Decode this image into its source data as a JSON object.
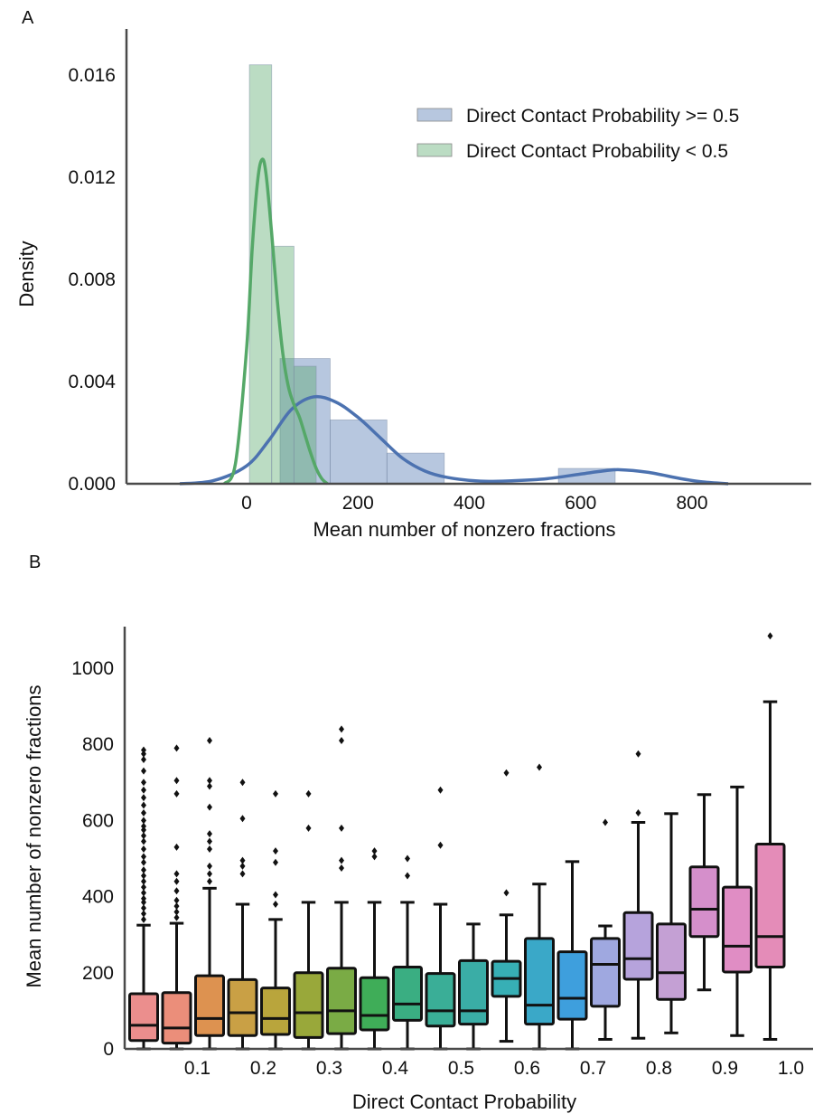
{
  "chart_data": [
    {
      "panel_label": "A",
      "type": "histogram+kde",
      "xlabel": "Mean number of nonzero fractions",
      "ylabel": "Density",
      "xlim": [
        -150,
        950
      ],
      "ylim": [
        0,
        0.018
      ],
      "xticks": [
        0,
        200,
        400,
        600,
        800
      ],
      "yticks": [
        0.0,
        0.004,
        0.008,
        0.012,
        0.016
      ],
      "ytick_labels": [
        "0.000",
        "0.004",
        "0.008",
        "0.012",
        "0.016"
      ],
      "legend_position": "top-right",
      "series": [
        {
          "name": "Direct Contact Probability >= 0.5",
          "color": "#4C72B0",
          "hist": [
            {
              "x0": 60,
              "x1": 150,
              "density": 0.0049
            },
            {
              "x0": 150,
              "x1": 252,
              "density": 0.0025
            },
            {
              "x0": 252,
              "x1": 355,
              "density": 0.0012
            },
            {
              "x0": 355,
              "x1": 560,
              "density": 0.0
            },
            {
              "x0": 560,
              "x1": 662,
              "density": 0.0006
            }
          ],
          "kde": [
            [
              -120,
              0.0
            ],
            [
              -60,
              0.00012
            ],
            [
              0,
              0.0007
            ],
            [
              40,
              0.0017
            ],
            [
              80,
              0.0029
            ],
            [
              120,
              0.0034
            ],
            [
              160,
              0.0032
            ],
            [
              200,
              0.0026
            ],
            [
              240,
              0.0018
            ],
            [
              280,
              0.001
            ],
            [
              320,
              0.0005
            ],
            [
              360,
              0.00025
            ],
            [
              420,
              0.0001
            ],
            [
              480,
              0.00012
            ],
            [
              540,
              0.0002
            ],
            [
              600,
              0.00038
            ],
            [
              640,
              0.0005
            ],
            [
              670,
              0.00055
            ],
            [
              720,
              0.00045
            ],
            [
              780,
              0.0002
            ],
            [
              820,
              7e-05
            ],
            [
              865,
              0.0
            ]
          ]
        },
        {
          "name": "Direct Contact Probability < 0.5",
          "color": "#55A868",
          "hist": [
            {
              "x0": 5,
              "x1": 45,
              "density": 0.0164
            },
            {
              "x0": 45,
              "x1": 85,
              "density": 0.0093
            },
            {
              "x0": 85,
              "x1": 125,
              "density": 0.0046
            }
          ],
          "kde": [
            [
              -40,
              0.0
            ],
            [
              -20,
              0.0008
            ],
            [
              0,
              0.0053
            ],
            [
              10,
              0.0092
            ],
            [
              20,
              0.0119
            ],
            [
              28,
              0.0127
            ],
            [
              35,
              0.0121
            ],
            [
              45,
              0.0098
            ],
            [
              55,
              0.0072
            ],
            [
              65,
              0.0051
            ],
            [
              75,
              0.0038
            ],
            [
              85,
              0.0031
            ],
            [
              95,
              0.0026
            ],
            [
              105,
              0.0019
            ],
            [
              115,
              0.0012
            ],
            [
              125,
              0.0006
            ],
            [
              135,
              0.0002
            ],
            [
              145,
              0.0
            ]
          ]
        }
      ]
    },
    {
      "panel_label": "B",
      "type": "box",
      "xlabel": "Direct Contact Probability",
      "ylabel": "Mean number of nonzero fractions",
      "ylim": [
        0,
        1100
      ],
      "yticks": [
        0,
        200,
        400,
        600,
        800,
        1000
      ],
      "tick_labels": [
        "0.1",
        "0.2",
        "0.3",
        "0.4",
        "0.5",
        "0.6",
        "0.7",
        "0.8",
        "0.9",
        "1.0"
      ],
      "boxes": [
        {
          "color": "#EB8E8D",
          "q1": 22,
          "median": 62,
          "q3": 145,
          "whislo": 0,
          "whishi": 325,
          "fliers": [
            340,
            355,
            370,
            385,
            395,
            410,
            425,
            440,
            455,
            470,
            490,
            505,
            525,
            545,
            560,
            575,
            585,
            600,
            620,
            640,
            660,
            680,
            700,
            730,
            760,
            775,
            785
          ]
        },
        {
          "color": "#EB8E7A",
          "q1": 15,
          "median": 55,
          "q3": 148,
          "whislo": 0,
          "whishi": 330,
          "fliers": [
            345,
            360,
            375,
            390,
            415,
            440,
            460,
            530,
            670,
            705,
            790
          ]
        },
        {
          "color": "#DD9250",
          "q1": 35,
          "median": 80,
          "q3": 192,
          "whislo": 0,
          "whishi": 422,
          "fliers": [
            440,
            460,
            480,
            525,
            545,
            565,
            635,
            690,
            705,
            810
          ]
        },
        {
          "color": "#C9A045",
          "q1": 35,
          "median": 95,
          "q3": 182,
          "whislo": 0,
          "whishi": 380,
          "fliers": [
            460,
            480,
            495,
            605,
            700
          ]
        },
        {
          "color": "#B9A53C",
          "q1": 38,
          "median": 80,
          "q3": 160,
          "whislo": 0,
          "whishi": 340,
          "fliers": [
            380,
            405,
            490,
            520,
            670
          ]
        },
        {
          "color": "#99A83A",
          "q1": 30,
          "median": 95,
          "q3": 200,
          "whislo": 0,
          "whishi": 385,
          "fliers": [
            580,
            670
          ]
        },
        {
          "color": "#7AAB45",
          "q1": 40,
          "median": 100,
          "q3": 212,
          "whislo": 0,
          "whishi": 385,
          "fliers": [
            475,
            495,
            580,
            810,
            840
          ]
        },
        {
          "color": "#3FAD58",
          "q1": 50,
          "median": 88,
          "q3": 187,
          "whislo": 0,
          "whishi": 385,
          "fliers": [
            505,
            520
          ]
        },
        {
          "color": "#3AAE82",
          "q1": 75,
          "median": 118,
          "q3": 215,
          "whislo": 0,
          "whishi": 385,
          "fliers": [
            455,
            500
          ]
        },
        {
          "color": "#3AAE97",
          "q1": 60,
          "median": 100,
          "q3": 198,
          "whislo": 0,
          "whishi": 380,
          "fliers": [
            535,
            680
          ]
        },
        {
          "color": "#3AADA6",
          "q1": 65,
          "median": 100,
          "q3": 232,
          "whislo": 0,
          "whishi": 328,
          "fliers": []
        },
        {
          "color": "#37AFB5",
          "q1": 138,
          "median": 185,
          "q3": 230,
          "whislo": 20,
          "whishi": 352,
          "fliers": [
            410,
            725
          ]
        },
        {
          "color": "#3AA8C8",
          "q1": 65,
          "median": 115,
          "q3": 290,
          "whislo": 0,
          "whishi": 433,
          "fliers": [
            740
          ]
        },
        {
          "color": "#3E9FDD",
          "q1": 78,
          "median": 133,
          "q3": 255,
          "whislo": 0,
          "whishi": 492,
          "fliers": []
        },
        {
          "color": "#9FA8E0",
          "q1": 112,
          "median": 222,
          "q3": 290,
          "whislo": 25,
          "whishi": 323,
          "fliers": [
            595
          ]
        },
        {
          "color": "#B6A3DC",
          "q1": 183,
          "median": 237,
          "q3": 358,
          "whislo": 28,
          "whishi": 595,
          "fliers": [
            620,
            775
          ]
        },
        {
          "color": "#C4A0D4",
          "q1": 130,
          "median": 200,
          "q3": 328,
          "whislo": 42,
          "whishi": 618,
          "fliers": []
        },
        {
          "color": "#D58FCB",
          "q1": 295,
          "median": 367,
          "q3": 478,
          "whislo": 155,
          "whishi": 668,
          "fliers": []
        },
        {
          "color": "#E08DC4",
          "q1": 202,
          "median": 270,
          "q3": 425,
          "whislo": 35,
          "whishi": 688,
          "fliers": []
        },
        {
          "color": "#E48CB8",
          "q1": 215,
          "median": 295,
          "q3": 538,
          "whislo": 25,
          "whishi": 912,
          "fliers": [
            1085
          ]
        }
      ]
    }
  ]
}
